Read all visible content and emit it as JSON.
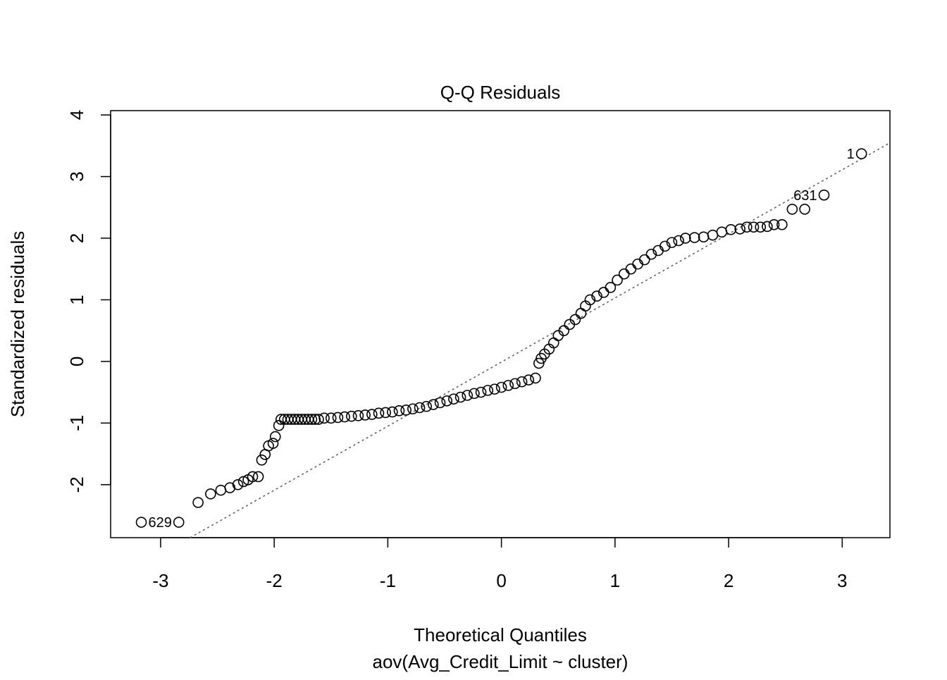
{
  "chart_data": {
    "type": "scatter",
    "title": "Q-Q Residuals",
    "xlabel": "Theoretical Quantiles",
    "subtitle": "aov(Avg_Credit_Limit ~ cluster)",
    "ylabel": "Standardized residuals",
    "xlim": [
      -3.44,
      3.42
    ],
    "ylim": [
      -2.86,
      4.07
    ],
    "xticks": [
      -3,
      -2,
      -1,
      0,
      1,
      2,
      3
    ],
    "yticks": [
      -2,
      -1,
      0,
      1,
      2,
      3,
      4
    ],
    "grid": false,
    "reference_line": {
      "style": "dotted",
      "color": "#666666",
      "intercept": -0.01,
      "slope": 1.04
    },
    "point_style": "open-circle",
    "annotations": [
      {
        "text": "629",
        "x": -3.17,
        "y": -2.61,
        "side": "right"
      },
      {
        "text": "631",
        "x": 2.84,
        "y": 2.7,
        "side": "left"
      },
      {
        "text": "1",
        "x": 3.17,
        "y": 3.37,
        "side": "left"
      }
    ],
    "points": [
      [
        -3.17,
        -2.61
      ],
      [
        -2.84,
        -2.61
      ],
      [
        -2.67,
        -2.29
      ],
      [
        -2.56,
        -2.15
      ],
      [
        -2.47,
        -2.09
      ],
      [
        -2.39,
        -2.05
      ],
      [
        -2.32,
        -2.0
      ],
      [
        -2.27,
        -1.95
      ],
      [
        -2.23,
        -1.92
      ],
      [
        -2.19,
        -1.87
      ],
      [
        -2.14,
        -1.87
      ],
      [
        -2.11,
        -1.6
      ],
      [
        -2.08,
        -1.51
      ],
      [
        -2.05,
        -1.37
      ],
      [
        -2.01,
        -1.33
      ],
      [
        -1.99,
        -1.22
      ],
      [
        -1.96,
        -1.04
      ],
      [
        -1.94,
        -0.94
      ],
      [
        -1.91,
        -0.94
      ],
      [
        -1.88,
        -0.94
      ],
      [
        -1.85,
        -0.94
      ],
      [
        -1.82,
        -0.94
      ],
      [
        -1.79,
        -0.94
      ],
      [
        -1.76,
        -0.94
      ],
      [
        -1.73,
        -0.94
      ],
      [
        -1.7,
        -0.94
      ],
      [
        -1.67,
        -0.94
      ],
      [
        -1.64,
        -0.94
      ],
      [
        -1.61,
        -0.94
      ],
      [
        -1.56,
        -0.92
      ],
      [
        -1.5,
        -0.92
      ],
      [
        -1.44,
        -0.91
      ],
      [
        -1.38,
        -0.9
      ],
      [
        -1.32,
        -0.89
      ],
      [
        -1.26,
        -0.88
      ],
      [
        -1.2,
        -0.87
      ],
      [
        -1.14,
        -0.86
      ],
      [
        -1.08,
        -0.84
      ],
      [
        -1.02,
        -0.83
      ],
      [
        -0.96,
        -0.82
      ],
      [
        -0.9,
        -0.8
      ],
      [
        -0.84,
        -0.79
      ],
      [
        -0.78,
        -0.77
      ],
      [
        -0.72,
        -0.75
      ],
      [
        -0.66,
        -0.73
      ],
      [
        -0.6,
        -0.7
      ],
      [
        -0.54,
        -0.67
      ],
      [
        -0.48,
        -0.64
      ],
      [
        -0.42,
        -0.61
      ],
      [
        -0.36,
        -0.58
      ],
      [
        -0.3,
        -0.55
      ],
      [
        -0.24,
        -0.52
      ],
      [
        -0.18,
        -0.5
      ],
      [
        -0.12,
        -0.47
      ],
      [
        -0.06,
        -0.45
      ],
      [
        0,
        -0.42
      ],
      [
        0.06,
        -0.39
      ],
      [
        0.12,
        -0.36
      ],
      [
        0.18,
        -0.33
      ],
      [
        0.24,
        -0.3
      ],
      [
        0.3,
        -0.27
      ],
      [
        0.33,
        -0.03
      ],
      [
        0.35,
        0.05
      ],
      [
        0.38,
        0.12
      ],
      [
        0.42,
        0.2
      ],
      [
        0.46,
        0.3
      ],
      [
        0.5,
        0.42
      ],
      [
        0.55,
        0.5
      ],
      [
        0.6,
        0.6
      ],
      [
        0.65,
        0.68
      ],
      [
        0.7,
        0.78
      ],
      [
        0.74,
        0.9
      ],
      [
        0.78,
        1.0
      ],
      [
        0.84,
        1.06
      ],
      [
        0.9,
        1.12
      ],
      [
        0.96,
        1.2
      ],
      [
        1.02,
        1.32
      ],
      [
        1.08,
        1.42
      ],
      [
        1.14,
        1.5
      ],
      [
        1.2,
        1.58
      ],
      [
        1.26,
        1.65
      ],
      [
        1.32,
        1.74
      ],
      [
        1.38,
        1.8
      ],
      [
        1.44,
        1.87
      ],
      [
        1.5,
        1.93
      ],
      [
        1.56,
        1.96
      ],
      [
        1.62,
        2.0
      ],
      [
        1.7,
        2.01
      ],
      [
        1.78,
        2.02
      ],
      [
        1.86,
        2.05
      ],
      [
        1.94,
        2.1
      ],
      [
        2.02,
        2.14
      ],
      [
        2.1,
        2.15
      ],
      [
        2.16,
        2.18
      ],
      [
        2.22,
        2.18
      ],
      [
        2.28,
        2.18
      ],
      [
        2.34,
        2.19
      ],
      [
        2.4,
        2.22
      ],
      [
        2.47,
        2.22
      ],
      [
        2.56,
        2.47
      ],
      [
        2.67,
        2.47
      ],
      [
        2.84,
        2.7
      ],
      [
        3.17,
        3.37
      ]
    ]
  }
}
